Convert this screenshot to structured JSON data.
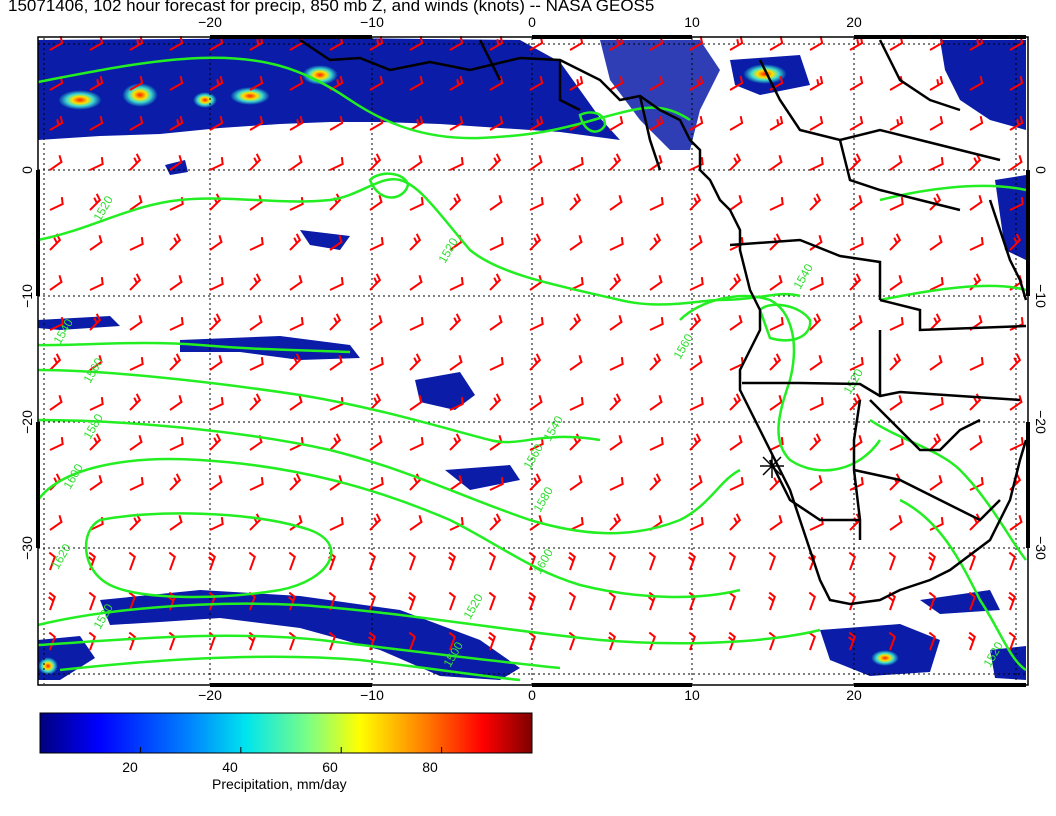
{
  "title": "15071406, 102 hour forecast for precip, 850 mb Z, and winds (knots) -- NASA GEOS5",
  "map": {
    "lon_range": [
      -30,
      30
    ],
    "lat_range": [
      -40,
      10
    ],
    "lon_ticks": [
      "−20",
      "−10",
      "0",
      "10",
      "20"
    ],
    "lat_ticks_left": [
      "0",
      "−10",
      "−20",
      "−30"
    ],
    "lat_ticks_right": [
      "0",
      "−10",
      "−20",
      "−30"
    ],
    "grid": "dotted",
    "coastline_color": "#000000",
    "wind_barb_color": "#ff0000",
    "contour_color": "#22ee22",
    "contour_labels": [
      "1520",
      "1520",
      "1540",
      "1560",
      "1580",
      "1600",
      "1620",
      "1540",
      "1560",
      "1580",
      "1600",
      "1520",
      "1500",
      "1520",
      "1540",
      "1560",
      "1520",
      "1520"
    ]
  },
  "colorbar": {
    "tick_labels": [
      "20",
      "40",
      "60",
      "80"
    ],
    "tick_values": [
      20,
      40,
      60,
      80
    ],
    "range": [
      0,
      98
    ],
    "label": "Precipitation, mm/day",
    "colors": [
      "#00007f",
      "#0000ff",
      "#0080ff",
      "#00e5ee",
      "#80ff80",
      "#ffff00",
      "#ff8000",
      "#ff0000",
      "#7f0000"
    ]
  }
}
